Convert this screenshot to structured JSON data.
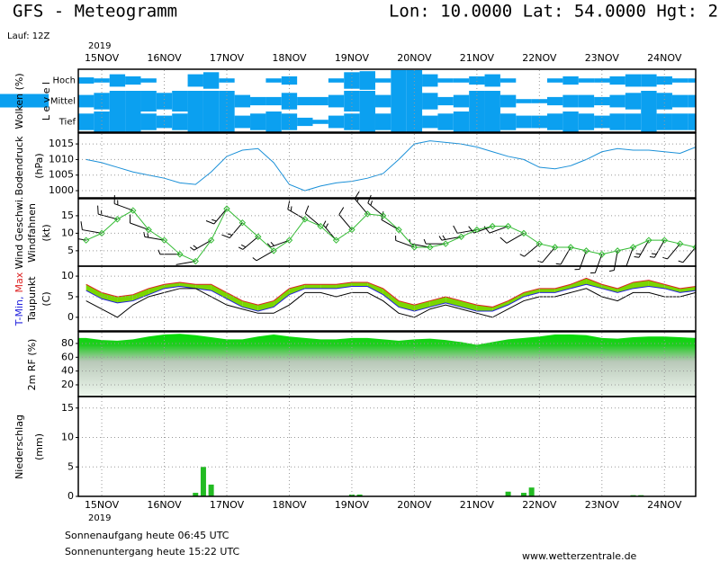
{
  "header": {
    "title": "GFS - Meteogramm",
    "location": "Lon: 10.0000 Lat: 54.0000 Hgt: 2",
    "run": "Lauf: 12Z"
  },
  "time_axis": {
    "year": "2019",
    "xlim": [
      14.625,
      24.5
    ],
    "xticks": [
      {
        "value": 15,
        "label": "15NOV"
      },
      {
        "value": 16,
        "label": "16NOV"
      },
      {
        "value": 17,
        "label": "17NOV"
      },
      {
        "value": 18,
        "label": "18NOV"
      },
      {
        "value": 19,
        "label": "19NOV"
      },
      {
        "value": 20,
        "label": "20NOV"
      },
      {
        "value": 21,
        "label": "21NOV"
      },
      {
        "value": 22,
        "label": "22NOV"
      },
      {
        "value": 23,
        "label": "23NOV"
      },
      {
        "value": 24,
        "label": "24NOV"
      }
    ],
    "x": [
      14.75,
      15,
      15.25,
      15.5,
      15.75,
      16,
      16.25,
      16.5,
      16.75,
      17,
      17.25,
      17.5,
      17.75,
      18,
      18.25,
      18.5,
      18.75,
      19,
      19.25,
      19.5,
      19.75,
      20,
      20.25,
      20.5,
      20.75,
      21,
      21.25,
      21.5,
      21.75,
      22,
      22.25,
      22.5,
      22.75,
      23,
      23.25,
      23.5,
      23.75,
      24,
      24.25,
      24.5
    ]
  },
  "chart_data": [
    {
      "type": "cloud",
      "title": "Wolken (%)",
      "subtitle": "L e v e l",
      "color": "#0ba0f0",
      "levels": [
        {
          "name": "Hoch",
          "values": [
            30,
            20,
            60,
            40,
            20,
            0,
            0,
            60,
            80,
            20,
            0,
            0,
            20,
            40,
            0,
            0,
            20,
            80,
            90,
            20,
            100,
            100,
            60,
            20,
            20,
            40,
            60,
            20,
            0,
            0,
            20,
            40,
            20,
            20,
            40,
            60,
            60,
            40,
            20,
            20
          ]
        },
        {
          "name": "Mittel",
          "values": [
            60,
            80,
            100,
            100,
            100,
            80,
            100,
            100,
            100,
            100,
            60,
            40,
            40,
            80,
            40,
            40,
            60,
            100,
            100,
            60,
            100,
            100,
            80,
            40,
            60,
            100,
            100,
            60,
            20,
            20,
            40,
            60,
            60,
            40,
            60,
            80,
            100,
            80,
            60,
            60
          ]
        },
        {
          "name": "Tief",
          "values": [
            80,
            100,
            100,
            100,
            80,
            60,
            80,
            100,
            100,
            100,
            60,
            80,
            100,
            80,
            40,
            20,
            60,
            80,
            100,
            80,
            100,
            100,
            60,
            80,
            100,
            100,
            100,
            80,
            60,
            60,
            80,
            100,
            80,
            60,
            80,
            80,
            100,
            80,
            80,
            80
          ]
        }
      ]
    },
    {
      "type": "line",
      "title": "Bodendruck",
      "unit": "(hPa)",
      "ylim": [
        997.7,
        1018.2
      ],
      "yticks": [
        1000,
        1005,
        1010,
        1015
      ],
      "grid": true,
      "series": [
        {
          "color": "#1a90d8",
          "values": [
            1010,
            1009,
            1007.5,
            1006,
            1005,
            1004,
            1002.5,
            1002,
            1006,
            1011,
            1013,
            1013.5,
            1009,
            1002,
            1000,
            1001.5,
            1002.5,
            1003,
            1004,
            1005.5,
            1010,
            1015,
            1016,
            1015.5,
            1015,
            1014,
            1012.5,
            1011,
            1010,
            1007.5,
            1007,
            1008,
            1010,
            1012.5,
            1013.5,
            1013,
            1013,
            1012.5,
            1012,
            1014
          ]
        }
      ]
    },
    {
      "type": "wind",
      "title": "Windfahnen",
      "unit": "(kt)",
      "ylim": [
        0.6,
        19.6
      ],
      "yticks": [
        5,
        10,
        15
      ],
      "grid": true,
      "series": [
        {
          "name": "Wind Geschwi.",
          "color": "#33bb33",
          "values": [
            8,
            10,
            14,
            16.5,
            11,
            8,
            4,
            2,
            8,
            17,
            13,
            9,
            5,
            8,
            14,
            12,
            8,
            11,
            15.5,
            15,
            11,
            6,
            6,
            7,
            9,
            11,
            12,
            12,
            10,
            7,
            6,
            6,
            5,
            4,
            5,
            6,
            8,
            8,
            7,
            6
          ]
        }
      ],
      "direction": [
        280,
        280,
        285,
        290,
        290,
        280,
        270,
        260,
        240,
        220,
        220,
        230,
        240,
        250,
        300,
        310,
        320,
        320,
        320,
        310,
        300,
        290,
        280,
        270,
        260,
        260,
        250,
        250,
        240,
        230,
        220,
        210,
        200,
        200,
        190,
        200,
        210,
        210,
        220,
        220
      ]
    },
    {
      "type": "range",
      "unit": "(C)",
      "ylim": [
        -3.3,
        12.2
      ],
      "yticks": [
        0,
        5,
        10
      ],
      "grid": true,
      "range_color": "#7ad600",
      "series": [
        {
          "name": "T-Min,",
          "color": "#2222dd",
          "values": [
            6.5,
            4.5,
            3.5,
            4,
            5.5,
            7,
            7.5,
            7,
            6.5,
            4.5,
            2.5,
            1.5,
            2.5,
            5.5,
            7,
            7,
            7,
            7.5,
            7.5,
            5.5,
            2.5,
            1.5,
            2.5,
            3.5,
            2.5,
            1.5,
            1.5,
            3,
            5,
            6,
            6,
            7,
            8,
            7,
            6,
            7,
            7.5,
            7,
            6,
            6.5
          ]
        },
        {
          "name": "Max",
          "color": "#dd2222",
          "values": [
            8,
            6,
            5,
            5.5,
            7,
            8,
            8.5,
            8,
            8,
            6,
            4,
            3,
            4,
            7,
            8,
            8,
            8,
            8.5,
            8.5,
            7,
            4,
            3,
            4,
            5,
            4,
            3,
            2.5,
            4,
            6,
            7,
            7,
            8,
            9.5,
            8,
            7,
            8.5,
            9,
            8,
            7,
            7.5
          ]
        },
        {
          "name": "Taupunkt",
          "color": "#000000",
          "values": [
            4,
            2,
            0,
            3,
            5,
            6,
            7,
            7,
            5,
            3,
            2,
            1,
            1,
            3,
            6,
            6,
            5,
            6,
            6,
            4,
            1,
            0,
            2,
            3,
            2,
            1,
            0,
            2,
            4,
            5,
            5,
            6,
            7,
            5,
            4,
            6,
            6,
            5,
            5,
            6
          ]
        }
      ]
    },
    {
      "type": "area",
      "title": "2m RF (%)",
      "color": "#11cc11",
      "ylim": [
        3,
        95.6
      ],
      "yticks": [
        20,
        40,
        60,
        80
      ],
      "grid": true,
      "values": [
        88,
        85,
        84,
        86,
        90,
        93,
        94,
        92,
        89,
        86,
        86,
        90,
        93,
        90,
        88,
        86,
        86,
        88,
        88,
        86,
        84,
        86,
        87,
        85,
        82,
        78,
        82,
        86,
        88,
        90,
        93,
        93,
        92,
        88,
        87,
        89,
        90,
        90,
        89,
        88
      ]
    },
    {
      "type": "bar",
      "title": "Niederschlag",
      "unit": "(mm)",
      "color": "#22bb22",
      "ylim": [
        0,
        16.8
      ],
      "yticks": [
        0,
        5,
        10,
        15
      ],
      "grid": true,
      "x": [
        16.5,
        16.625,
        16.75,
        19,
        19.125,
        21.5,
        21.75,
        21.875,
        23.5,
        23.625
      ],
      "values": [
        0.6,
        5,
        2,
        0.3,
        0.3,
        0.8,
        0.6,
        1.5,
        0.2,
        0.2
      ]
    }
  ],
  "footer": {
    "sunrise": "Sonnenaufgang heute 06:45 UTC",
    "sunset": "Sonnenuntergang heute 15:22 UTC",
    "source": "www.wetterzentrale.de"
  }
}
